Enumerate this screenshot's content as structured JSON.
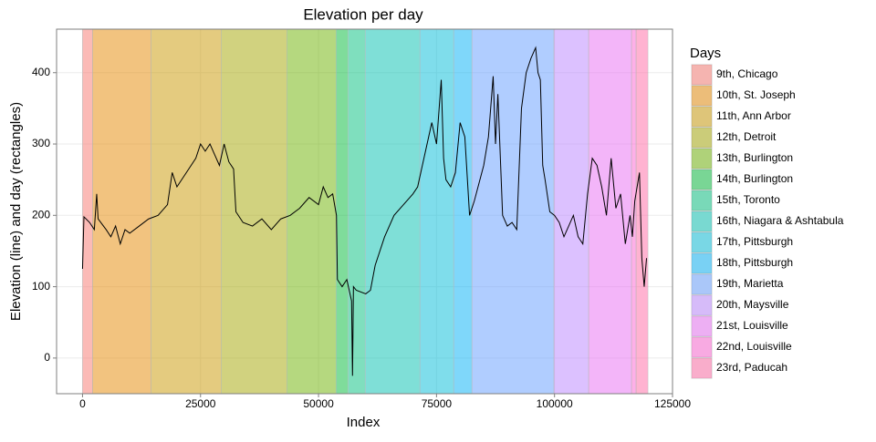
{
  "chart_data": {
    "type": "line",
    "title": "Elevation per day",
    "x_label": "Index",
    "y_label": "Elevation (line) and day (rectangles)",
    "legend_title": "Days",
    "legend_position": "right",
    "grid": true,
    "rect_opacity": 0.5,
    "xlim": [
      -5500,
      125000
    ],
    "ylim": [
      -50,
      461
    ],
    "xticks": [
      0,
      25000,
      50000,
      75000,
      100000,
      125000
    ],
    "yticks": [
      0,
      100,
      200,
      300,
      400
    ],
    "days": [
      {
        "name": "9th, Chicago",
        "color": "#F8766D",
        "start": 0,
        "end": 2125
      },
      {
        "name": "10th, St. Joseph",
        "color": "#E58700",
        "start": 2125,
        "end": 14490
      },
      {
        "name": "11th, Ann Arbor",
        "color": "#C99800",
        "start": 14490,
        "end": 29370
      },
      {
        "name": "12th, Detroit",
        "color": "#A3A500",
        "start": 29370,
        "end": 43280
      },
      {
        "name": "13th, Burlington",
        "color": "#6BB100",
        "start": 43280,
        "end": 53710
      },
      {
        "name": "14th, Burlington",
        "color": "#00BA38",
        "start": 53710,
        "end": 56220
      },
      {
        "name": "15th, Toronto",
        "color": "#00BF7D",
        "start": 56220,
        "end": 59890
      },
      {
        "name": "16th, Niagara & Ashtabula",
        "color": "#00C0AF",
        "start": 59890,
        "end": 71480
      },
      {
        "name": "17th, Pittsburgh",
        "color": "#00BCD8",
        "start": 71480,
        "end": 78630
      },
      {
        "name": "18th, Pittsburgh",
        "color": "#00B0F6",
        "start": 78630,
        "end": 82500
      },
      {
        "name": "19th, Marietta",
        "color": "#619CFF",
        "start": 82500,
        "end": 99880
      },
      {
        "name": "20th, Maysville",
        "color": "#B983FF",
        "start": 99880,
        "end": 107230
      },
      {
        "name": "21st, Louisville",
        "color": "#E76BF3",
        "start": 107230,
        "end": 116310
      },
      {
        "name": "22nd, Louisville",
        "color": "#FD61D1",
        "start": 116310,
        "end": 117280
      },
      {
        "name": "23rd, Paducah",
        "color": "#FF67A4",
        "start": 117280,
        "end": 119790
      }
    ],
    "line": {
      "color": "#000000",
      "x": [
        0,
        300,
        1500,
        2500,
        3000,
        3300,
        5000,
        6000,
        7000,
        8000,
        9000,
        10000,
        12000,
        14000,
        16000,
        18000,
        19000,
        20000,
        22000,
        24000,
        25000,
        26000,
        27000,
        28000,
        29000,
        30000,
        31000,
        32000,
        32500,
        34000,
        36000,
        38000,
        40000,
        42000,
        44000,
        46000,
        48000,
        50000,
        51000,
        52000,
        53000,
        53800,
        54000,
        55000,
        56000,
        57000,
        57200,
        57400,
        58000,
        60000,
        61000,
        62000,
        64000,
        66000,
        68000,
        70000,
        71000,
        72000,
        73000,
        74000,
        75000,
        76000,
        76500,
        77000,
        78000,
        79000,
        80000,
        81000,
        82000,
        83000,
        85000,
        86000,
        87000,
        87500,
        88000,
        89000,
        90000,
        91000,
        92000,
        93000,
        94000,
        95000,
        96000,
        96500,
        97000,
        97500,
        98000,
        99000,
        100000,
        101000,
        102000,
        103000,
        104000,
        105000,
        106000,
        107000,
        108000,
        109000,
        110000,
        111000,
        112000,
        113000,
        114000,
        115000,
        116000,
        116500,
        117000,
        118000,
        118500,
        119000,
        119500
      ],
      "y": [
        125,
        198,
        190,
        180,
        230,
        195,
        180,
        170,
        185,
        160,
        180,
        175,
        185,
        195,
        200,
        215,
        260,
        240,
        260,
        280,
        300,
        290,
        300,
        285,
        270,
        300,
        275,
        265,
        205,
        190,
        185,
        195,
        180,
        195,
        200,
        210,
        225,
        215,
        240,
        225,
        230,
        200,
        110,
        100,
        110,
        80,
        -25,
        100,
        95,
        90,
        95,
        130,
        170,
        200,
        215,
        230,
        240,
        270,
        300,
        330,
        300,
        390,
        280,
        250,
        240,
        260,
        330,
        310,
        200,
        220,
        270,
        310,
        395,
        300,
        370,
        200,
        185,
        190,
        180,
        350,
        400,
        420,
        435,
        400,
        390,
        270,
        250,
        205,
        200,
        190,
        170,
        185,
        200,
        170,
        160,
        230,
        280,
        270,
        240,
        200,
        280,
        210,
        230,
        160,
        200,
        170,
        220,
        260,
        140,
        100,
        140
      ]
    }
  }
}
